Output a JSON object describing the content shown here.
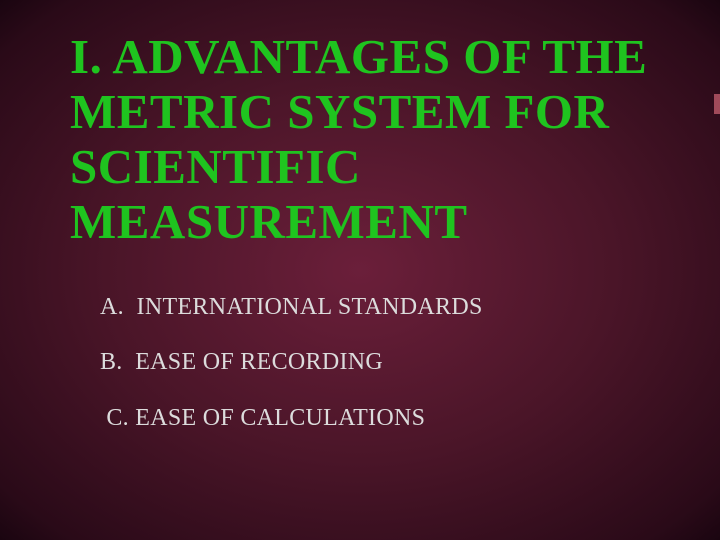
{
  "slide": {
    "title": "I. ADVANTAGES OF THE METRIC SYSTEM FOR SCIENTIFIC MEASUREMENT",
    "title_color": "#1fc41f",
    "title_fontsize": 49,
    "body_color": "#dcdcdc",
    "body_fontsize": 24,
    "background_gradient": [
      "#6b1f3a",
      "#4a1528",
      "#2a0a18",
      "#1a0510"
    ],
    "bullets": [
      {
        "label": "A.",
        "text": "INTERNATIONAL STANDARDS"
      },
      {
        "label": "B.",
        "text": "EASE OF RECORDING"
      },
      {
        "label": "C.",
        "text": "EASE OF CALCULATIONS"
      }
    ]
  }
}
